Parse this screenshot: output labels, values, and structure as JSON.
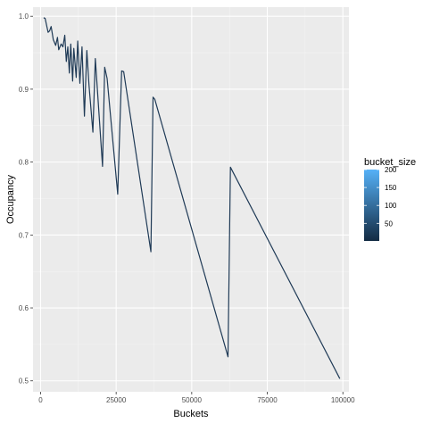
{
  "chart_data": {
    "type": "line",
    "title": "",
    "xlabel": "Buckets",
    "ylabel": "Occupancy",
    "xlim": [
      -2500,
      102000
    ],
    "ylim": [
      0.485,
      1.0125
    ],
    "x_ticks": [
      0,
      25000,
      50000,
      75000,
      100000
    ],
    "x_tick_labels": [
      "0",
      "25000",
      "50000",
      "75000",
      "100000"
    ],
    "y_ticks": [
      0.5,
      0.6,
      0.7,
      0.8,
      0.9,
      1.0
    ],
    "y_tick_labels": [
      "0.5",
      "0.6",
      "0.7",
      "0.8",
      "0.9",
      "1.0"
    ],
    "grid": true,
    "legend": {
      "title": "bucket_size",
      "placement": "right",
      "type": "colorbar",
      "range": [
        1,
        200
      ],
      "ticks": [
        50,
        100,
        150,
        200
      ],
      "tick_labels": [
        "50",
        "100",
        "150",
        "200"
      ],
      "low_color": "#132B43",
      "high_color": "#56B1F7"
    },
    "line_color": "#1f3a56",
    "panel_background": "#EBEBEB",
    "series": [
      {
        "x": [
          1000,
          1500,
          2500,
          3000,
          3500,
          4200,
          5000,
          5600,
          6000,
          6800,
          7400,
          8000,
          8500,
          9000,
          9500,
          10000,
          10600,
          11000,
          11800,
          12300,
          13000,
          13700,
          14500,
          15300,
          16000,
          17300,
          18100,
          20500,
          21200,
          22000,
          25500,
          26800,
          27500,
          36500,
          37200,
          37800,
          62000,
          62800,
          99000
        ],
        "y": [
          0.998,
          0.997,
          0.978,
          0.98,
          0.986,
          0.968,
          0.96,
          0.971,
          0.954,
          0.962,
          0.958,
          0.974,
          0.938,
          0.958,
          0.922,
          0.962,
          0.911,
          0.956,
          0.916,
          0.966,
          0.908,
          0.958,
          0.863,
          0.953,
          0.906,
          0.841,
          0.942,
          0.794,
          0.93,
          0.915,
          0.756,
          0.925,
          0.924,
          0.677,
          0.889,
          0.886,
          0.533,
          0.793,
          0.503
        ]
      }
    ]
  }
}
